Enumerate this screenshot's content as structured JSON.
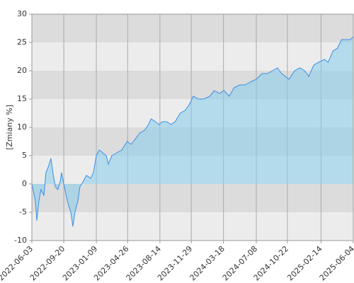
{
  "chart_data": {
    "type": "area",
    "y_label": "[Zmiany %]",
    "x": [
      "2022-06-03",
      "2022-06-15",
      "2022-06-20",
      "2022-06-27",
      "2022-07-04",
      "2022-07-14",
      "2022-07-21",
      "2022-07-29",
      "2022-08-07",
      "2022-08-14",
      "2022-08-22",
      "2022-08-31",
      "2022-09-08",
      "2022-09-12",
      "2022-09-20",
      "2022-10-02",
      "2022-10-14",
      "2022-10-21",
      "2022-10-28",
      "2022-11-07",
      "2022-11-14",
      "2022-11-26",
      "2022-12-06",
      "2022-12-21",
      "2022-12-30",
      "2023-01-09",
      "2023-01-19",
      "2023-01-31",
      "2023-02-12",
      "2023-02-19",
      "2023-03-03",
      "2023-03-20",
      "2023-04-06",
      "2023-04-24",
      "2023-05-08",
      "2023-05-23",
      "2023-06-06",
      "2023-06-23",
      "2023-07-06",
      "2023-07-15",
      "2023-07-30",
      "2023-08-11",
      "2023-08-23",
      "2023-09-06",
      "2023-09-21",
      "2023-10-05",
      "2023-10-22",
      "2023-11-08",
      "2023-11-22",
      "2023-12-06",
      "2023-12-23",
      "2024-01-11",
      "2024-01-31",
      "2024-02-16",
      "2024-03-04",
      "2024-03-20",
      "2024-04-06",
      "2024-04-23",
      "2024-05-12",
      "2024-05-31",
      "2024-06-17",
      "2024-07-08",
      "2024-07-27",
      "2024-08-15",
      "2024-09-01",
      "2024-09-18",
      "2024-10-03",
      "2024-10-15",
      "2024-10-27",
      "2024-11-16",
      "2024-12-03",
      "2024-12-20",
      "2025-01-03",
      "2025-01-20",
      "2025-02-06",
      "2025-02-26",
      "2025-03-10",
      "2025-03-27",
      "2025-04-11",
      "2025-04-25",
      "2025-05-10",
      "2025-05-24",
      "2025-06-04"
    ],
    "values": [
      0,
      -3,
      -6.5,
      -3,
      -1,
      -2,
      2,
      3,
      4.5,
      2,
      -0.5,
      -1,
      0.5,
      2,
      0,
      -3,
      -5,
      -7.5,
      -5,
      -3,
      -0.5,
      0.5,
      1.5,
      1,
      2,
      5,
      6,
      5.5,
      5,
      3.5,
      5,
      5.5,
      6,
      7.5,
      7,
      8,
      9,
      9.5,
      10.5,
      11.5,
      11,
      10.5,
      11,
      11,
      10.5,
      11,
      12.5,
      13,
      14,
      15.5,
      15,
      15,
      15.5,
      16.5,
      16,
      16.5,
      15.5,
      17,
      17.5,
      17.5,
      18,
      18.5,
      19.5,
      19.5,
      20,
      20.5,
      19.5,
      19,
      18.5,
      20,
      20.5,
      20,
      19,
      21,
      21.5,
      22,
      21.5,
      23.5,
      24,
      25.5,
      25.5,
      25.5,
      26
    ],
    "color": "#3a8ee6",
    "fill_color": "#87ceeb",
    "band_colors": [
      "#ececec",
      "#dcdcdc"
    ],
    "xlim": [
      "2022-06-03",
      "2025-06-04"
    ],
    "xticks": [
      "2022-06-03",
      "2022-09-20",
      "2023-01-09",
      "2023-04-26",
      "2023-08-14",
      "2023-11-29",
      "2024-03-18",
      "2024-07-08",
      "2024-10-22",
      "2025-02-14",
      "2025-06-04"
    ],
    "ylim": [
      -10,
      30
    ],
    "yticks": [
      -10,
      -5,
      0,
      5,
      10,
      15,
      20,
      25,
      30
    ],
    "grid": true
  }
}
